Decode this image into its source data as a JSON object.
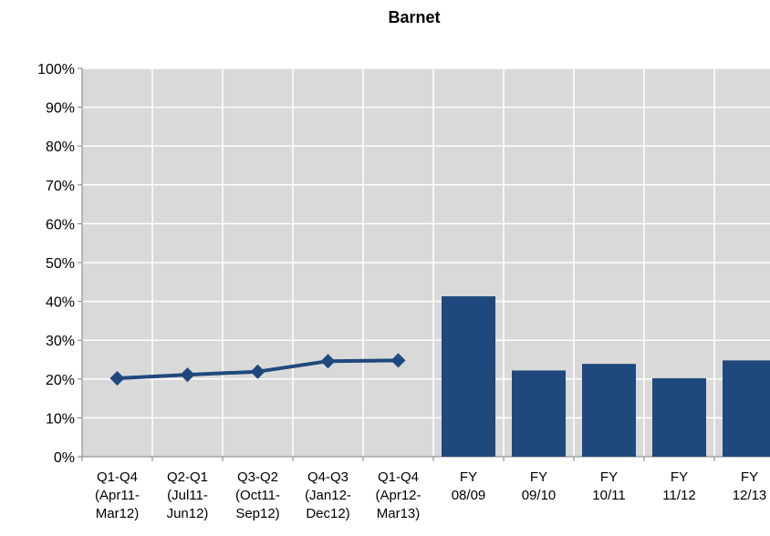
{
  "chart_data": {
    "title": "Barnet",
    "type": "bar",
    "categories": [
      [
        "Q1-Q4",
        "(Apr11-",
        "Mar12)"
      ],
      [
        "Q2-Q1",
        "(Jul11-",
        "Jun12)"
      ],
      [
        "Q3-Q2",
        "(Oct11-",
        "Sep12)"
      ],
      [
        "Q4-Q3",
        "(Jan12-",
        "Dec12)"
      ],
      [
        "Q1-Q4",
        "(Apr12-",
        "Mar13)"
      ],
      [
        "FY",
        "08/09"
      ],
      [
        "FY",
        "09/10"
      ],
      [
        "FY",
        "10/11"
      ],
      [
        "FY",
        "11/12"
      ],
      [
        "FY",
        "12/13"
      ]
    ],
    "line_series": {
      "values": [
        20.2,
        21.1,
        21.9,
        24.6,
        24.8
      ]
    },
    "bar_series": {
      "values": [
        41.3,
        22.2,
        23.9,
        20.2,
        24.8
      ]
    },
    "y_ticks": [
      "0%",
      "10%",
      "20%",
      "30%",
      "40%",
      "50%",
      "60%",
      "70%",
      "80%",
      "90%",
      "100%"
    ],
    "ylim": [
      0,
      100
    ],
    "grid": true,
    "colors": {
      "series": "#1f497d",
      "plot_background": "#d9d9d9",
      "gridlines": "#ffffff"
    }
  }
}
